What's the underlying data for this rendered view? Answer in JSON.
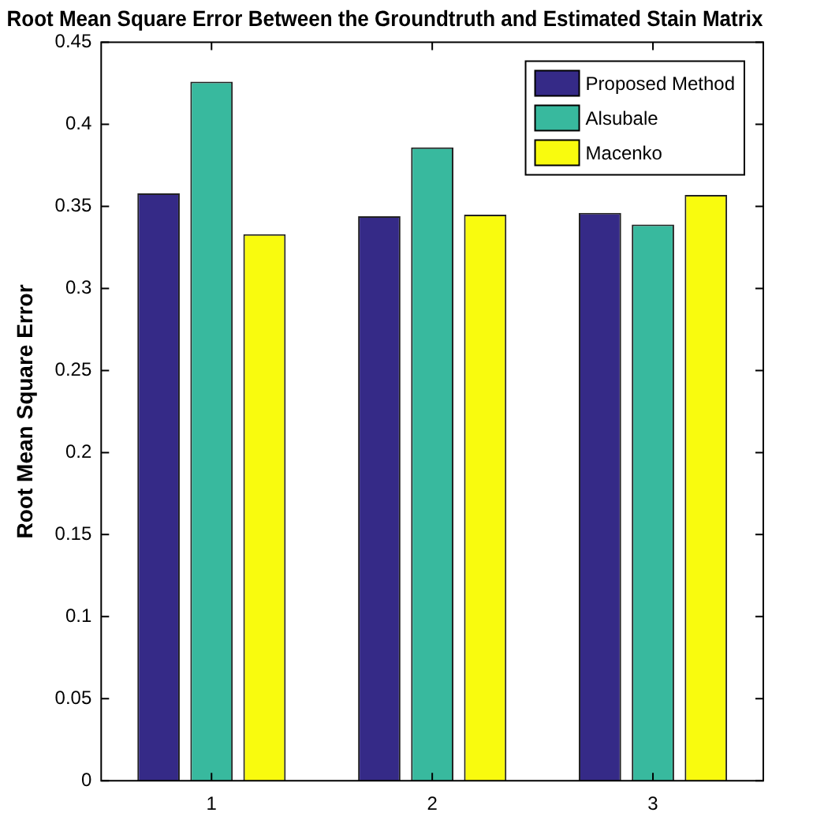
{
  "chart_data": {
    "type": "bar",
    "title": "Root Mean Square Error Between the Groundtruth and Estimated Stain Matrix",
    "ylabel": "Root Mean Square Error",
    "categories": [
      "1",
      "2",
      "3"
    ],
    "series": [
      {
        "name": "Proposed Method",
        "color": "#352a87",
        "values": [
          0.358,
          0.344,
          0.346
        ]
      },
      {
        "name": "Alsubale",
        "color": "#38b99e",
        "values": [
          0.426,
          0.386,
          0.339
        ]
      },
      {
        "name": "Macenko",
        "color": "#f9fb0e",
        "values": [
          0.333,
          0.345,
          0.357
        ]
      }
    ],
    "ylim": [
      0,
      0.45
    ],
    "yticks": [
      0,
      0.05,
      0.1,
      0.15,
      0.2,
      0.25,
      0.3,
      0.35,
      0.4,
      0.45
    ],
    "grid": false,
    "legend": "top right"
  }
}
